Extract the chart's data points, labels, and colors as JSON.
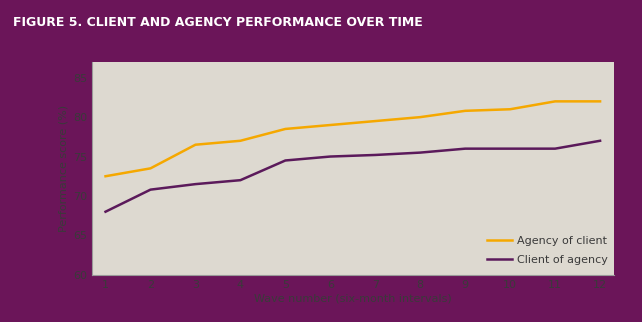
{
  "title": "FIGURE 5. CLIENT AND AGENCY PERFORMANCE OVER TIME",
  "title_bg_color": "#6B1559",
  "title_text_color": "#FFFFFF",
  "bg_color": "#DDD9D0",
  "plot_bg_color": "#DDD9D0",
  "outer_border_color": "#6B1559",
  "xlabel": "Wave number (six-month intervals)",
  "ylabel": "Performance score (%)",
  "ylim": [
    60,
    87
  ],
  "xlim": [
    0.7,
    12.3
  ],
  "yticks": [
    60,
    65,
    70,
    75,
    80,
    85
  ],
  "xticks": [
    1,
    2,
    3,
    4,
    5,
    6,
    7,
    8,
    9,
    10,
    11,
    12
  ],
  "agency_of_client": [
    72.5,
    73.5,
    76.5,
    77.0,
    78.5,
    79.0,
    79.5,
    80.0,
    80.8,
    81.0,
    82.0,
    82.0
  ],
  "client_of_agency": [
    68.0,
    70.8,
    71.5,
    72.0,
    74.5,
    75.0,
    75.2,
    75.5,
    76.0,
    76.0,
    76.0,
    77.0
  ],
  "agency_color": "#F5A800",
  "client_color": "#5B1A5B",
  "legend_agency": "Agency of client",
  "legend_client": "Client of agency",
  "line_width": 1.8,
  "title_fontsize": 9.0,
  "label_fontsize": 8.0,
  "tick_fontsize": 8.0,
  "legend_fontsize": 8.0,
  "spine_color": "#999999"
}
